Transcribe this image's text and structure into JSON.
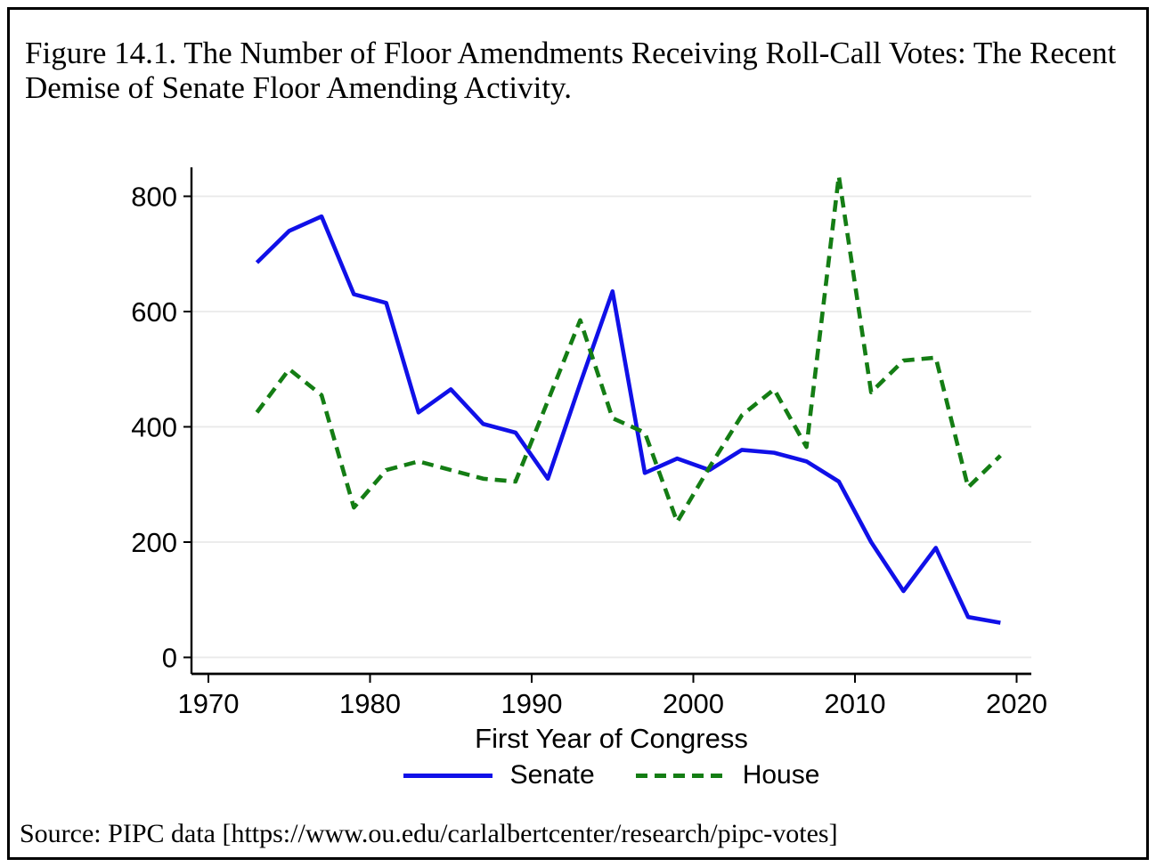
{
  "figure": {
    "title": "Figure 14.1. The Number of Floor Amendments Receiving Roll-Call Votes: The Recent Demise of Senate Floor Amending Activity.",
    "source": "Source: PIPC data [https://www.ou.edu/carlalbertcenter/research/pipc-votes]"
  },
  "colors": {
    "senate": "#1010e8",
    "house": "#147d14",
    "grid": "#e9e9e9",
    "axis": "#000000"
  },
  "chart_data": {
    "type": "line",
    "title": "",
    "xlabel": "First Year of Congress",
    "ylabel": "",
    "grid": true,
    "legend_position": "bottom",
    "xlim": [
      1969,
      2021
    ],
    "ylim": [
      0,
      850
    ],
    "xticks": [
      1970,
      1980,
      1990,
      2000,
      2010,
      2020
    ],
    "yticks": [
      0,
      200,
      400,
      600,
      800
    ],
    "x": [
      1973,
      1975,
      1977,
      1979,
      1981,
      1983,
      1985,
      1987,
      1989,
      1991,
      1993,
      1995,
      1997,
      1999,
      2001,
      2003,
      2005,
      2007,
      2009,
      2011,
      2013,
      2015,
      2017,
      2019
    ],
    "series": [
      {
        "name": "Senate",
        "color": "#1010e8",
        "line_style": "solid",
        "values": [
          685,
          740,
          765,
          630,
          615,
          425,
          465,
          405,
          390,
          310,
          475,
          635,
          320,
          345,
          325,
          360,
          355,
          340,
          305,
          200,
          115,
          190,
          70,
          60
        ]
      },
      {
        "name": "House",
        "color": "#147d14",
        "line_style": "dashed",
        "values": [
          425,
          500,
          455,
          260,
          325,
          340,
          325,
          310,
          305,
          445,
          585,
          415,
          390,
          235,
          330,
          420,
          465,
          365,
          835,
          460,
          515,
          520,
          295,
          350
        ]
      }
    ]
  }
}
